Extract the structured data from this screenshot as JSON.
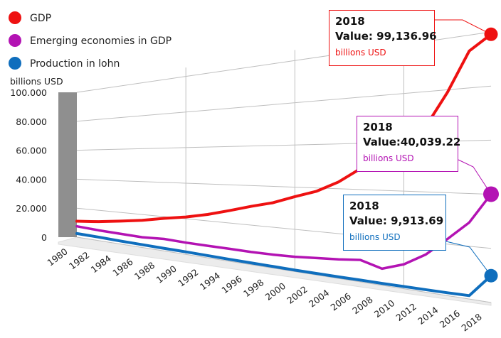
{
  "chart_data": {
    "type": "line",
    "title": "",
    "xlabel": "",
    "ylabel": "billions USD",
    "ylim": [
      0,
      100000
    ],
    "ytick_labels": [
      "0",
      "20.000",
      "40.000",
      "60.000",
      "80.000",
      "100.000"
    ],
    "ytick_values": [
      0,
      20000,
      40000,
      60000,
      80000,
      100000
    ],
    "x_tick_labels": [
      "1980",
      "1982",
      "1984",
      "1986",
      "1988",
      "1990",
      "1992",
      "1994",
      "1996",
      "1998",
      "2000",
      "2002",
      "2004",
      "2006",
      "2008",
      "2010",
      "2012",
      "2014",
      "2016",
      "2018"
    ],
    "x": [
      1980,
      1982,
      1984,
      1986,
      1988,
      1990,
      1992,
      1994,
      1996,
      1998,
      2000,
      2002,
      2004,
      2006,
      2008,
      2010,
      2012,
      2014,
      2016,
      2018
    ],
    "grid": true,
    "legend_position": "top-left",
    "series": [
      {
        "name": "GDP",
        "color": "#ee1111",
        "values": [
          11000,
          12500,
          14500,
          16500,
          19000,
          21000,
          23500,
          26500,
          29500,
          32000,
          35500,
          38500,
          43000,
          49000,
          55000,
          65000,
          66000,
          79000,
          94000,
          99136.96
        ]
      },
      {
        "name": "Emerging economies in GDP",
        "color": "#b313b3",
        "values": [
          7500,
          6800,
          6500,
          6200,
          7000,
          6600,
          6500,
          6500,
          6400,
          6600,
          7000,
          7800,
          8500,
          9500,
          7000,
          10000,
          15000,
          22000,
          29000,
          40039.22
        ]
      },
      {
        "name": "Production in lohn",
        "color": "#0f6ebd",
        "values": [
          2500,
          2300,
          1900,
          1700,
          1500,
          1400,
          1200,
          1000,
          900,
          800,
          700,
          700,
          700,
          800,
          800,
          900,
          1000,
          1100,
          1300,
          9913.69
        ]
      }
    ]
  },
  "callouts": [
    {
      "year": "2018",
      "value_label": "Value:",
      "value": "99,136.96",
      "unit": "billions USD",
      "color": "#ee1111"
    },
    {
      "year": "2018",
      "value_label": "Value:",
      "value": "40,039.22",
      "unit": "billions USD",
      "color": "#b313b3"
    },
    {
      "year": "2018",
      "value_label": "Value:",
      "value": "9,913.69",
      "unit": "billions USD",
      "color": "#0f6ebd"
    }
  ]
}
